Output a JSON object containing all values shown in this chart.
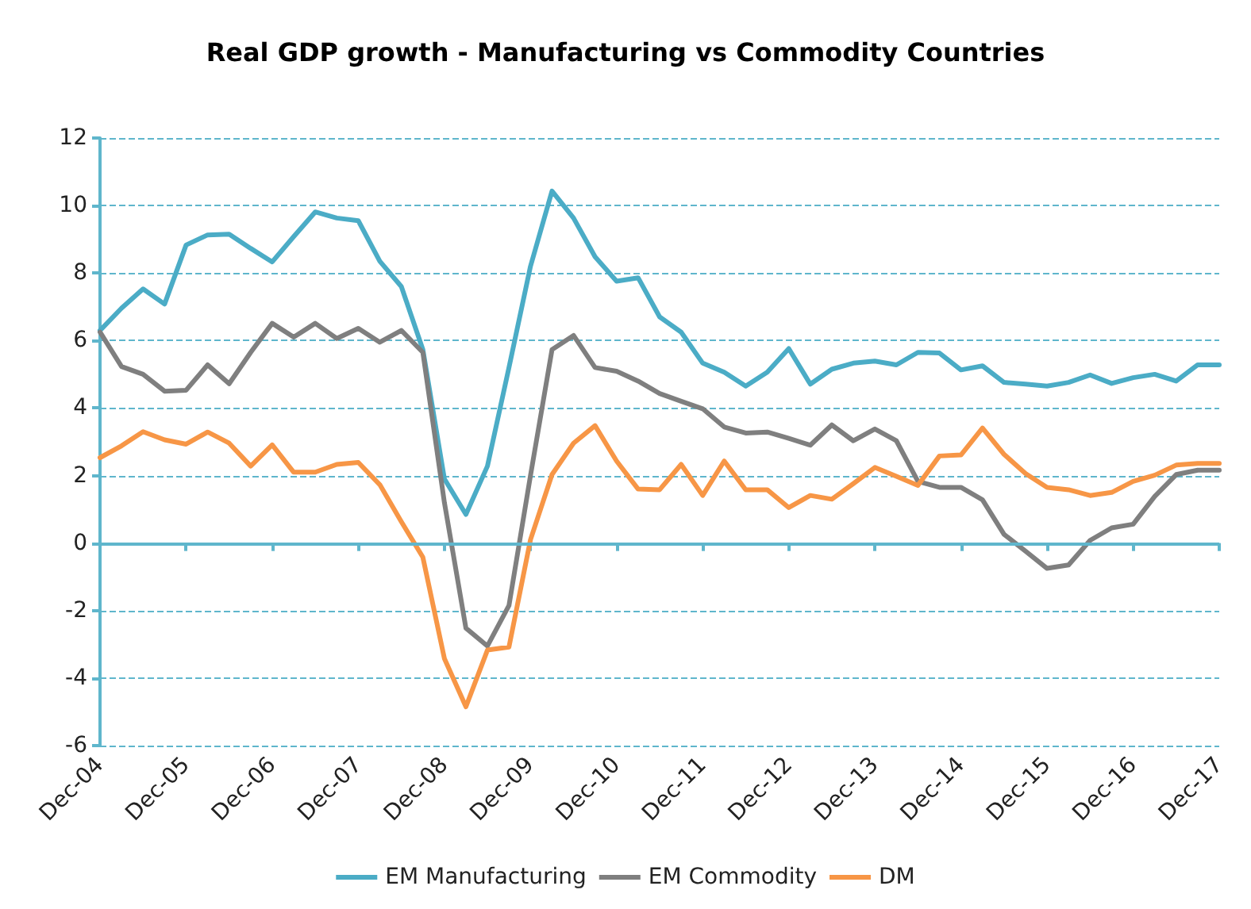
{
  "chart_data": {
    "type": "line",
    "title": "Real GDP growth - Manufacturing vs Commodity Countries",
    "categories": [
      "Dec-04",
      null,
      null,
      null,
      "Dec-05",
      null,
      null,
      null,
      "Dec-06",
      null,
      null,
      null,
      "Dec-07",
      null,
      null,
      null,
      "Dec-08",
      null,
      null,
      null,
      "Dec-09",
      null,
      null,
      null,
      "Dec-10",
      null,
      null,
      null,
      "Dec-11",
      null,
      null,
      null,
      "Dec-12",
      null,
      null,
      null,
      "Dec-13",
      null,
      null,
      null,
      "Dec-14",
      null,
      null,
      null,
      "Dec-15",
      null,
      null,
      null,
      "Dec-16",
      null,
      null,
      null,
      "Dec-17"
    ],
    "series": [
      {
        "name": "EM Manufacturing",
        "color": "#4bacc6",
        "values": [
          6.3,
          6.96,
          7.53,
          7.08,
          8.83,
          9.13,
          9.15,
          8.73,
          8.33,
          9.08,
          9.81,
          9.63,
          9.55,
          8.35,
          7.6,
          5.73,
          1.9,
          0.85,
          2.28,
          5.2,
          8.2,
          10.43,
          9.63,
          8.48,
          7.76,
          7.86,
          6.7,
          6.25,
          5.33,
          5.06,
          4.65,
          5.06,
          5.76,
          4.71,
          5.15,
          5.33,
          5.39,
          5.28,
          5.65,
          5.63,
          5.13,
          5.25,
          4.76,
          4.71,
          4.65,
          4.76,
          4.98,
          4.73,
          4.9,
          5.0,
          4.8,
          5.28,
          5.28
        ]
      },
      {
        "name": "EM Commodity",
        "color": "#7f7f7f",
        "values": [
          6.25,
          5.23,
          5.0,
          4.5,
          4.53,
          5.28,
          4.72,
          5.65,
          6.51,
          6.1,
          6.51,
          6.06,
          6.36,
          5.95,
          6.3,
          5.65,
          1.2,
          -2.52,
          -3.05,
          -1.85,
          2.0,
          5.73,
          6.15,
          5.2,
          5.09,
          4.8,
          4.43,
          4.2,
          3.98,
          3.44,
          3.26,
          3.29,
          3.1,
          2.9,
          3.5,
          3.03,
          3.38,
          3.03,
          1.83,
          1.65,
          1.65,
          1.28,
          0.26,
          -0.24,
          -0.75,
          -0.65,
          0.08,
          0.45,
          0.56,
          1.38,
          2.03,
          2.16,
          2.16
        ]
      },
      {
        "name": "DM",
        "color": "#f79646",
        "values": [
          2.53,
          2.88,
          3.3,
          3.06,
          2.93,
          3.29,
          2.96,
          2.28,
          2.91,
          2.1,
          2.1,
          2.33,
          2.39,
          1.73,
          0.63,
          -0.42,
          -3.42,
          -4.85,
          -3.17,
          -3.08,
          0.1,
          2.03,
          2.96,
          3.48,
          2.43,
          1.6,
          1.58,
          2.33,
          1.41,
          2.43,
          1.58,
          1.58,
          1.05,
          1.41,
          1.3,
          1.76,
          2.24,
          1.98,
          1.71,
          2.58,
          2.61,
          3.41,
          2.63,
          2.06,
          1.65,
          1.58,
          1.41,
          1.5,
          1.83,
          2.01,
          2.31,
          2.36,
          2.36
        ]
      }
    ],
    "ylim": [
      -6,
      12
    ],
    "yticks": [
      -6,
      -4,
      -2,
      0,
      2,
      4,
      6,
      8,
      10,
      12
    ],
    "ref_lines": [
      {
        "axis": "y",
        "value": 0,
        "color": "#5fb6cc",
        "line_style": "solid"
      }
    ],
    "grid": "y",
    "legend": "bottom",
    "marker": "none",
    "line_style": "solid"
  }
}
